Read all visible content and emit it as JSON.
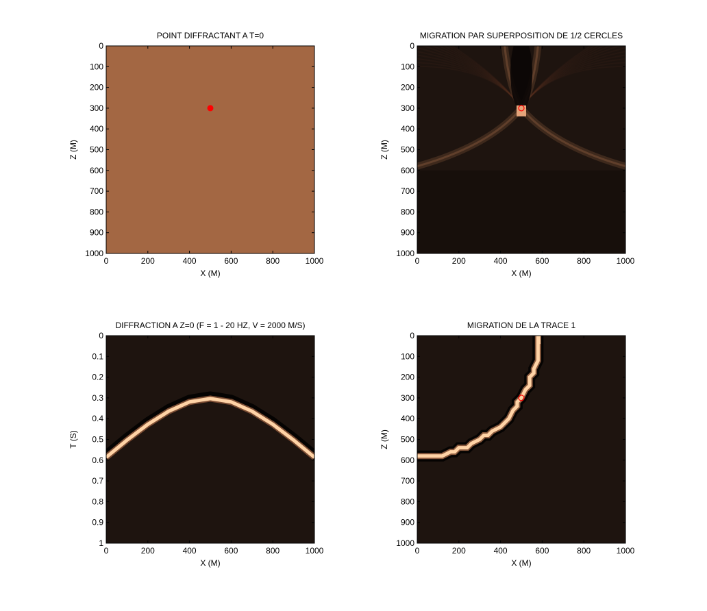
{
  "colors": {
    "background": "#ffffff",
    "flat_model": "#a36743",
    "point": "#ff0000",
    "dark": "#1e140f",
    "bright": "#ffd3a6",
    "halo": "#6b3f27"
  },
  "chart_data": [
    {
      "type": "heatmap",
      "title": "POINT DIFFRACTANT A T=0",
      "xlabel": "X (M)",
      "ylabel": "Z (M)",
      "xlim": [
        0,
        1000
      ],
      "ylim": [
        0,
        1000
      ],
      "y_reversed": true,
      "xticks": [
        "0",
        "200",
        "400",
        "600",
        "800",
        "1000"
      ],
      "yticks": [
        "0",
        "100",
        "200",
        "300",
        "400",
        "500",
        "600",
        "700",
        "800",
        "900",
        "1000"
      ],
      "colormap": "copper",
      "description_of_field": "uniform",
      "markers": [
        {
          "x": 500,
          "y": 300,
          "style": "filled-circle",
          "color": "#ff0000"
        }
      ]
    },
    {
      "type": "heatmap",
      "title": "MIGRATION PAR SUPERPOSITION DE 1/2 CERCLES",
      "xlabel": "X (M)",
      "ylabel": "Z (M)",
      "xlim": [
        0,
        1000
      ],
      "ylim": [
        0,
        1000
      ],
      "y_reversed": true,
      "xticks": [
        "0",
        "200",
        "400",
        "600",
        "800",
        "1000"
      ],
      "yticks": [
        "0",
        "100",
        "200",
        "300",
        "400",
        "500",
        "600",
        "700",
        "800",
        "900",
        "1000"
      ],
      "colormap": "copper",
      "focus": {
        "x": 500,
        "z": 300
      },
      "markers": [
        {
          "x": 500,
          "y": 300,
          "style": "open-circle",
          "color": "#ff0000"
        }
      ]
    },
    {
      "type": "heatmap",
      "title": "DIFFRACTION A Z=0 (F = 1 - 20 HZ, V = 2000 M/S)",
      "xlabel": "X (M)",
      "ylabel": "T (S)",
      "xlim": [
        0,
        1000
      ],
      "ylim": [
        0,
        1
      ],
      "y_reversed": true,
      "xticks": [
        "0",
        "200",
        "400",
        "600",
        "800",
        "1000"
      ],
      "yticks": [
        "0",
        "0.1",
        "0.2",
        "0.3",
        "0.4",
        "0.5",
        "0.6",
        "0.7",
        "0.8",
        "0.9",
        "1"
      ],
      "colormap": "copper",
      "hyperbola": {
        "x": [
          0,
          100,
          200,
          300,
          400,
          500,
          600,
          700,
          800,
          900,
          1000
        ],
        "t": [
          0.583,
          0.5,
          0.424,
          0.361,
          0.316,
          0.3,
          0.316,
          0.361,
          0.424,
          0.5,
          0.583
        ]
      }
    },
    {
      "type": "heatmap",
      "title": "MIGRATION DE LA TRACE 1",
      "xlabel": "X (M)",
      "ylabel": "Z (M)",
      "xlim": [
        0,
        1000
      ],
      "ylim": [
        0,
        1000
      ],
      "y_reversed": true,
      "xticks": [
        "0",
        "200",
        "400",
        "600",
        "800",
        "1000"
      ],
      "yticks": [
        "0",
        "100",
        "200",
        "300",
        "400",
        "500",
        "600",
        "700",
        "800",
        "900",
        "1000"
      ],
      "colormap": "copper",
      "semicircle": {
        "center_x": 0,
        "center_z": 0,
        "radius": 583
      },
      "markers": [
        {
          "x": 500,
          "y": 300,
          "style": "open-circle",
          "color": "#ff0000"
        }
      ]
    }
  ]
}
